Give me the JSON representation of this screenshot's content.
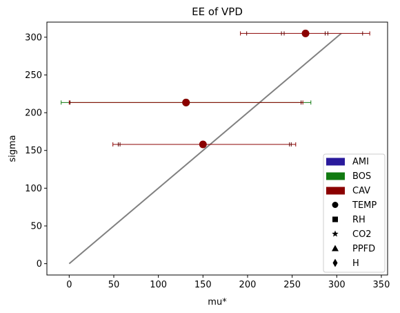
{
  "chart_data": {
    "type": "scatter",
    "title": "EE of VPD",
    "xlabel": "mu*",
    "ylabel": "sigma",
    "xlim": [
      -25,
      357
    ],
    "ylim": [
      -15,
      320
    ],
    "xticks": [
      0,
      50,
      100,
      150,
      200,
      250,
      300,
      350
    ],
    "yticks": [
      0,
      50,
      100,
      150,
      200,
      250,
      300
    ],
    "grid": false,
    "legend_position": "lower-right",
    "colors": {
      "AMI": "#2a1a9c",
      "BOS": "#117a11",
      "CAV": "#8b0000",
      "line": "#808080"
    },
    "legend": [
      {
        "label": "AMI",
        "kind": "patch",
        "color": "#2a1a9c"
      },
      {
        "label": "BOS",
        "kind": "patch",
        "color": "#117a11"
      },
      {
        "label": "CAV",
        "kind": "patch",
        "color": "#8b0000"
      },
      {
        "label": "TEMP",
        "kind": "marker",
        "marker": "circle"
      },
      {
        "label": "RH",
        "kind": "marker",
        "marker": "square"
      },
      {
        "label": "CO2",
        "kind": "marker",
        "marker": "star"
      },
      {
        "label": "PPFD",
        "kind": "marker",
        "marker": "triangle"
      },
      {
        "label": "H",
        "kind": "marker",
        "marker": "diamond"
      }
    ],
    "diagonal": {
      "from": [
        0,
        0
      ],
      "to": [
        305,
        305
      ]
    },
    "series": [
      {
        "name": "BOS",
        "color": "#117a11",
        "marker": "circle",
        "points": [
          {
            "x": 131,
            "y": 213.5,
            "xerr_low": -9,
            "xerr_high": 271
          }
        ]
      },
      {
        "name": "CAV",
        "color": "#8b0000",
        "marker": "circle",
        "points": [
          {
            "x": 265,
            "y": 305,
            "xerr_low": 192,
            "xerr_high": 337
          },
          {
            "x": 131,
            "y": 213.5,
            "xerr_low": 0,
            "xerr_high": 262
          },
          {
            "x": 150,
            "y": 158,
            "xerr_low": 49,
            "xerr_high": 254
          }
        ]
      }
    ],
    "extra_caps": [
      {
        "y": 305,
        "x": [
          199,
          238,
          241,
          287,
          290,
          329
        ]
      },
      {
        "y": 213.5,
        "x": [
          1,
          260
        ]
      },
      {
        "y": 158,
        "x": [
          55,
          57,
          247,
          249
        ]
      }
    ]
  }
}
